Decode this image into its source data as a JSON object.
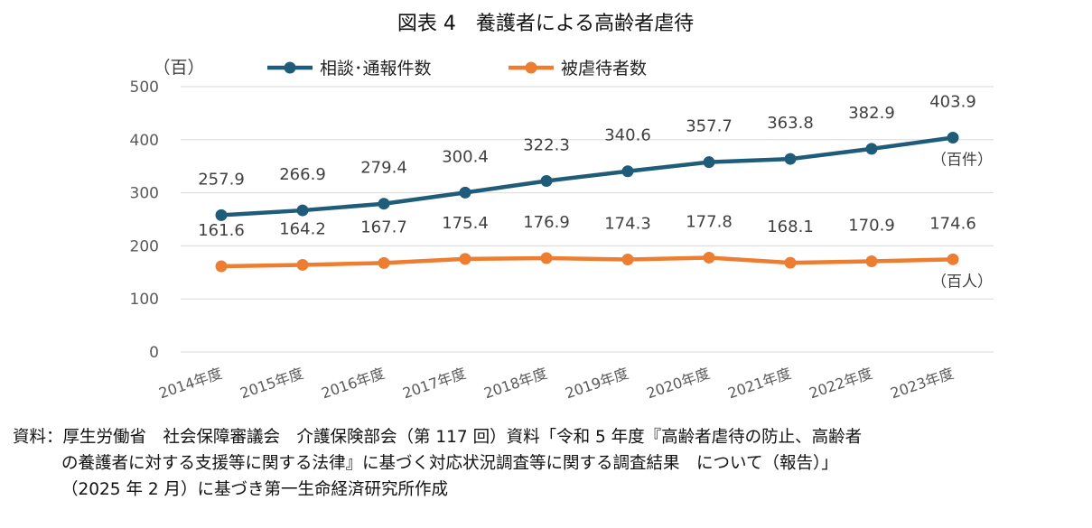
{
  "chart_data": {
    "type": "line",
    "title": "図表 4　養護者による高齢者虐待",
    "ylabel": "（百）",
    "ylim": [
      0,
      500
    ],
    "yticks": [
      0,
      100,
      200,
      300,
      400,
      500
    ],
    "grid": true,
    "legend_position": "top",
    "categories": [
      "2014年度",
      "2015年度",
      "2016年度",
      "2017年度",
      "2018年度",
      "2019年度",
      "2020年度",
      "2021年度",
      "2022年度",
      "2023年度"
    ],
    "series": [
      {
        "name": "相談･通報件数",
        "color": "#1f5c7a",
        "unit_label": "（百件）",
        "values": [
          257.9,
          266.9,
          279.4,
          300.4,
          322.3,
          340.6,
          357.7,
          363.8,
          382.9,
          403.9
        ]
      },
      {
        "name": "被虐待者数",
        "color": "#ed7d31",
        "unit_label": "（百人）",
        "values": [
          161.6,
          164.2,
          167.7,
          175.4,
          176.9,
          174.3,
          177.8,
          168.1,
          170.9,
          174.6
        ]
      }
    ]
  },
  "source": {
    "line1": "資料：厚生労働省　社会保障審議会　介護保険部会（第 117 回）資料「令和 5 年度『高齢者虐待の防止、高齢者",
    "line2": "の養護者に対する支援等に関する法律』に基づく対応状況調査等に関する調査結果　について（報告）」",
    "line3": "（2025 年 2 月）に基づき第一生命経済研究所作成"
  }
}
